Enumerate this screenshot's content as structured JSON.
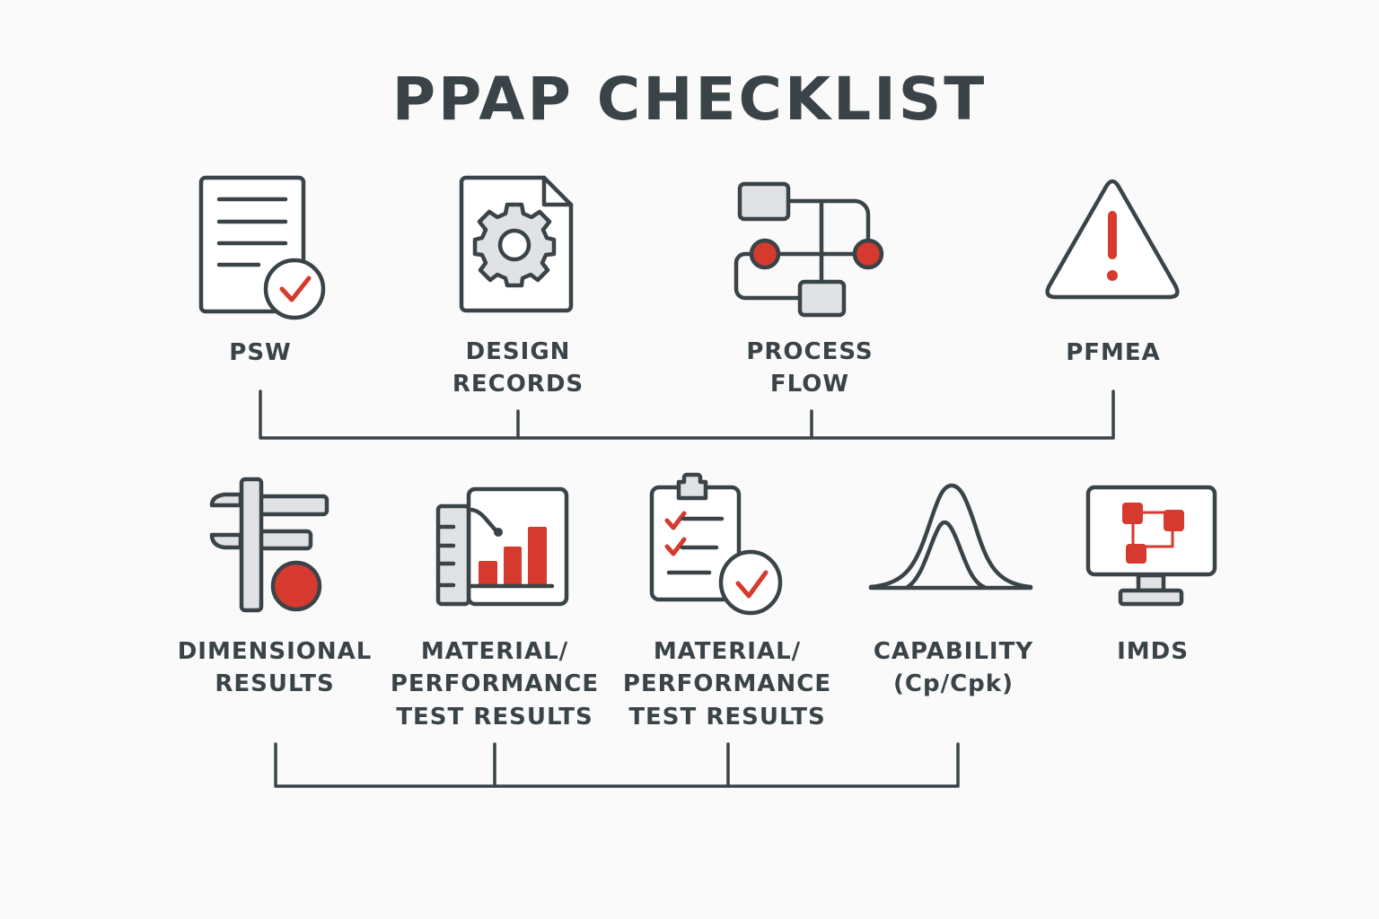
{
  "title": "PPAP CHECKLIST",
  "colors": {
    "dark": "#3a4347",
    "accent": "#d63a2f",
    "fill": "#e0e2e4",
    "background": "#fafafa"
  },
  "top_row": [
    {
      "icon": "document-check-icon",
      "label": [
        "PSW"
      ]
    },
    {
      "icon": "document-gear-icon",
      "label": [
        "DESIGN",
        "RECORDS"
      ]
    },
    {
      "icon": "flowchart-icon",
      "label": [
        "PROCESS",
        "FLOW"
      ]
    },
    {
      "icon": "warning-triangle-icon",
      "label": [
        "PFMEA"
      ]
    }
  ],
  "bottom_row": [
    {
      "icon": "caliper-icon",
      "label": [
        "DIMENSIONAL",
        "RESULTS"
      ]
    },
    {
      "icon": "bar-chart-ruler-icon",
      "label": [
        "MATERIAL/",
        "PERFORMANCE",
        "TEST RESULTS"
      ]
    },
    {
      "icon": "clipboard-check-icon",
      "label": [
        "MATERIAL/",
        "PERFORMANCE",
        "TEST RESULTS"
      ]
    },
    {
      "icon": "bell-curve-icon",
      "label": [
        "CAPABILITY",
        "(Cp/Cpk)"
      ]
    },
    {
      "icon": "monitor-network-icon",
      "label": [
        "IMDS"
      ]
    }
  ]
}
